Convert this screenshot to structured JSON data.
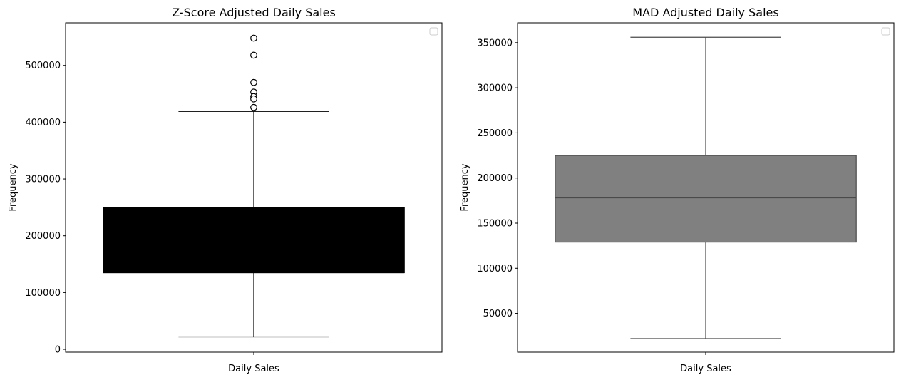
{
  "chart_data": [
    {
      "type": "box",
      "title": "Z-Score Adjusted Daily Sales",
      "xlabel": "Daily Sales",
      "ylabel": "Frequency",
      "categories": [
        "Daily Sales"
      ],
      "ylim": [
        -5000,
        575000
      ],
      "yticks": [
        0,
        100000,
        200000,
        300000,
        400000,
        500000
      ],
      "ytick_labels": [
        "0",
        "100000",
        "200000",
        "300000",
        "400000",
        "500000"
      ],
      "box": {
        "whisker_low": 22000,
        "q1": 135000,
        "median": 135000,
        "q3": 250000,
        "whisker_high": 419000
      },
      "outliers": [
        548000,
        518000,
        470000,
        453000,
        445000,
        441000,
        426000
      ],
      "box_color": "#000000",
      "line_color": "#000000",
      "legend": "top-right, empty"
    },
    {
      "type": "box",
      "title": "MAD Adjusted Daily Sales",
      "xlabel": "Daily Sales",
      "ylabel": "Frequency",
      "categories": [
        "Daily Sales"
      ],
      "ylim": [
        7000,
        372000
      ],
      "yticks": [
        50000,
        100000,
        150000,
        200000,
        250000,
        300000,
        350000
      ],
      "ytick_labels": [
        "50000",
        "100000",
        "150000",
        "200000",
        "250000",
        "300000",
        "350000"
      ],
      "box": {
        "whisker_low": 22000,
        "q1": 129000,
        "median": 178000,
        "q3": 225000,
        "whisker_high": 356000
      },
      "outliers": [],
      "box_color": "#808080",
      "line_color": "#4a4a4a",
      "legend": "top-right, empty"
    }
  ]
}
